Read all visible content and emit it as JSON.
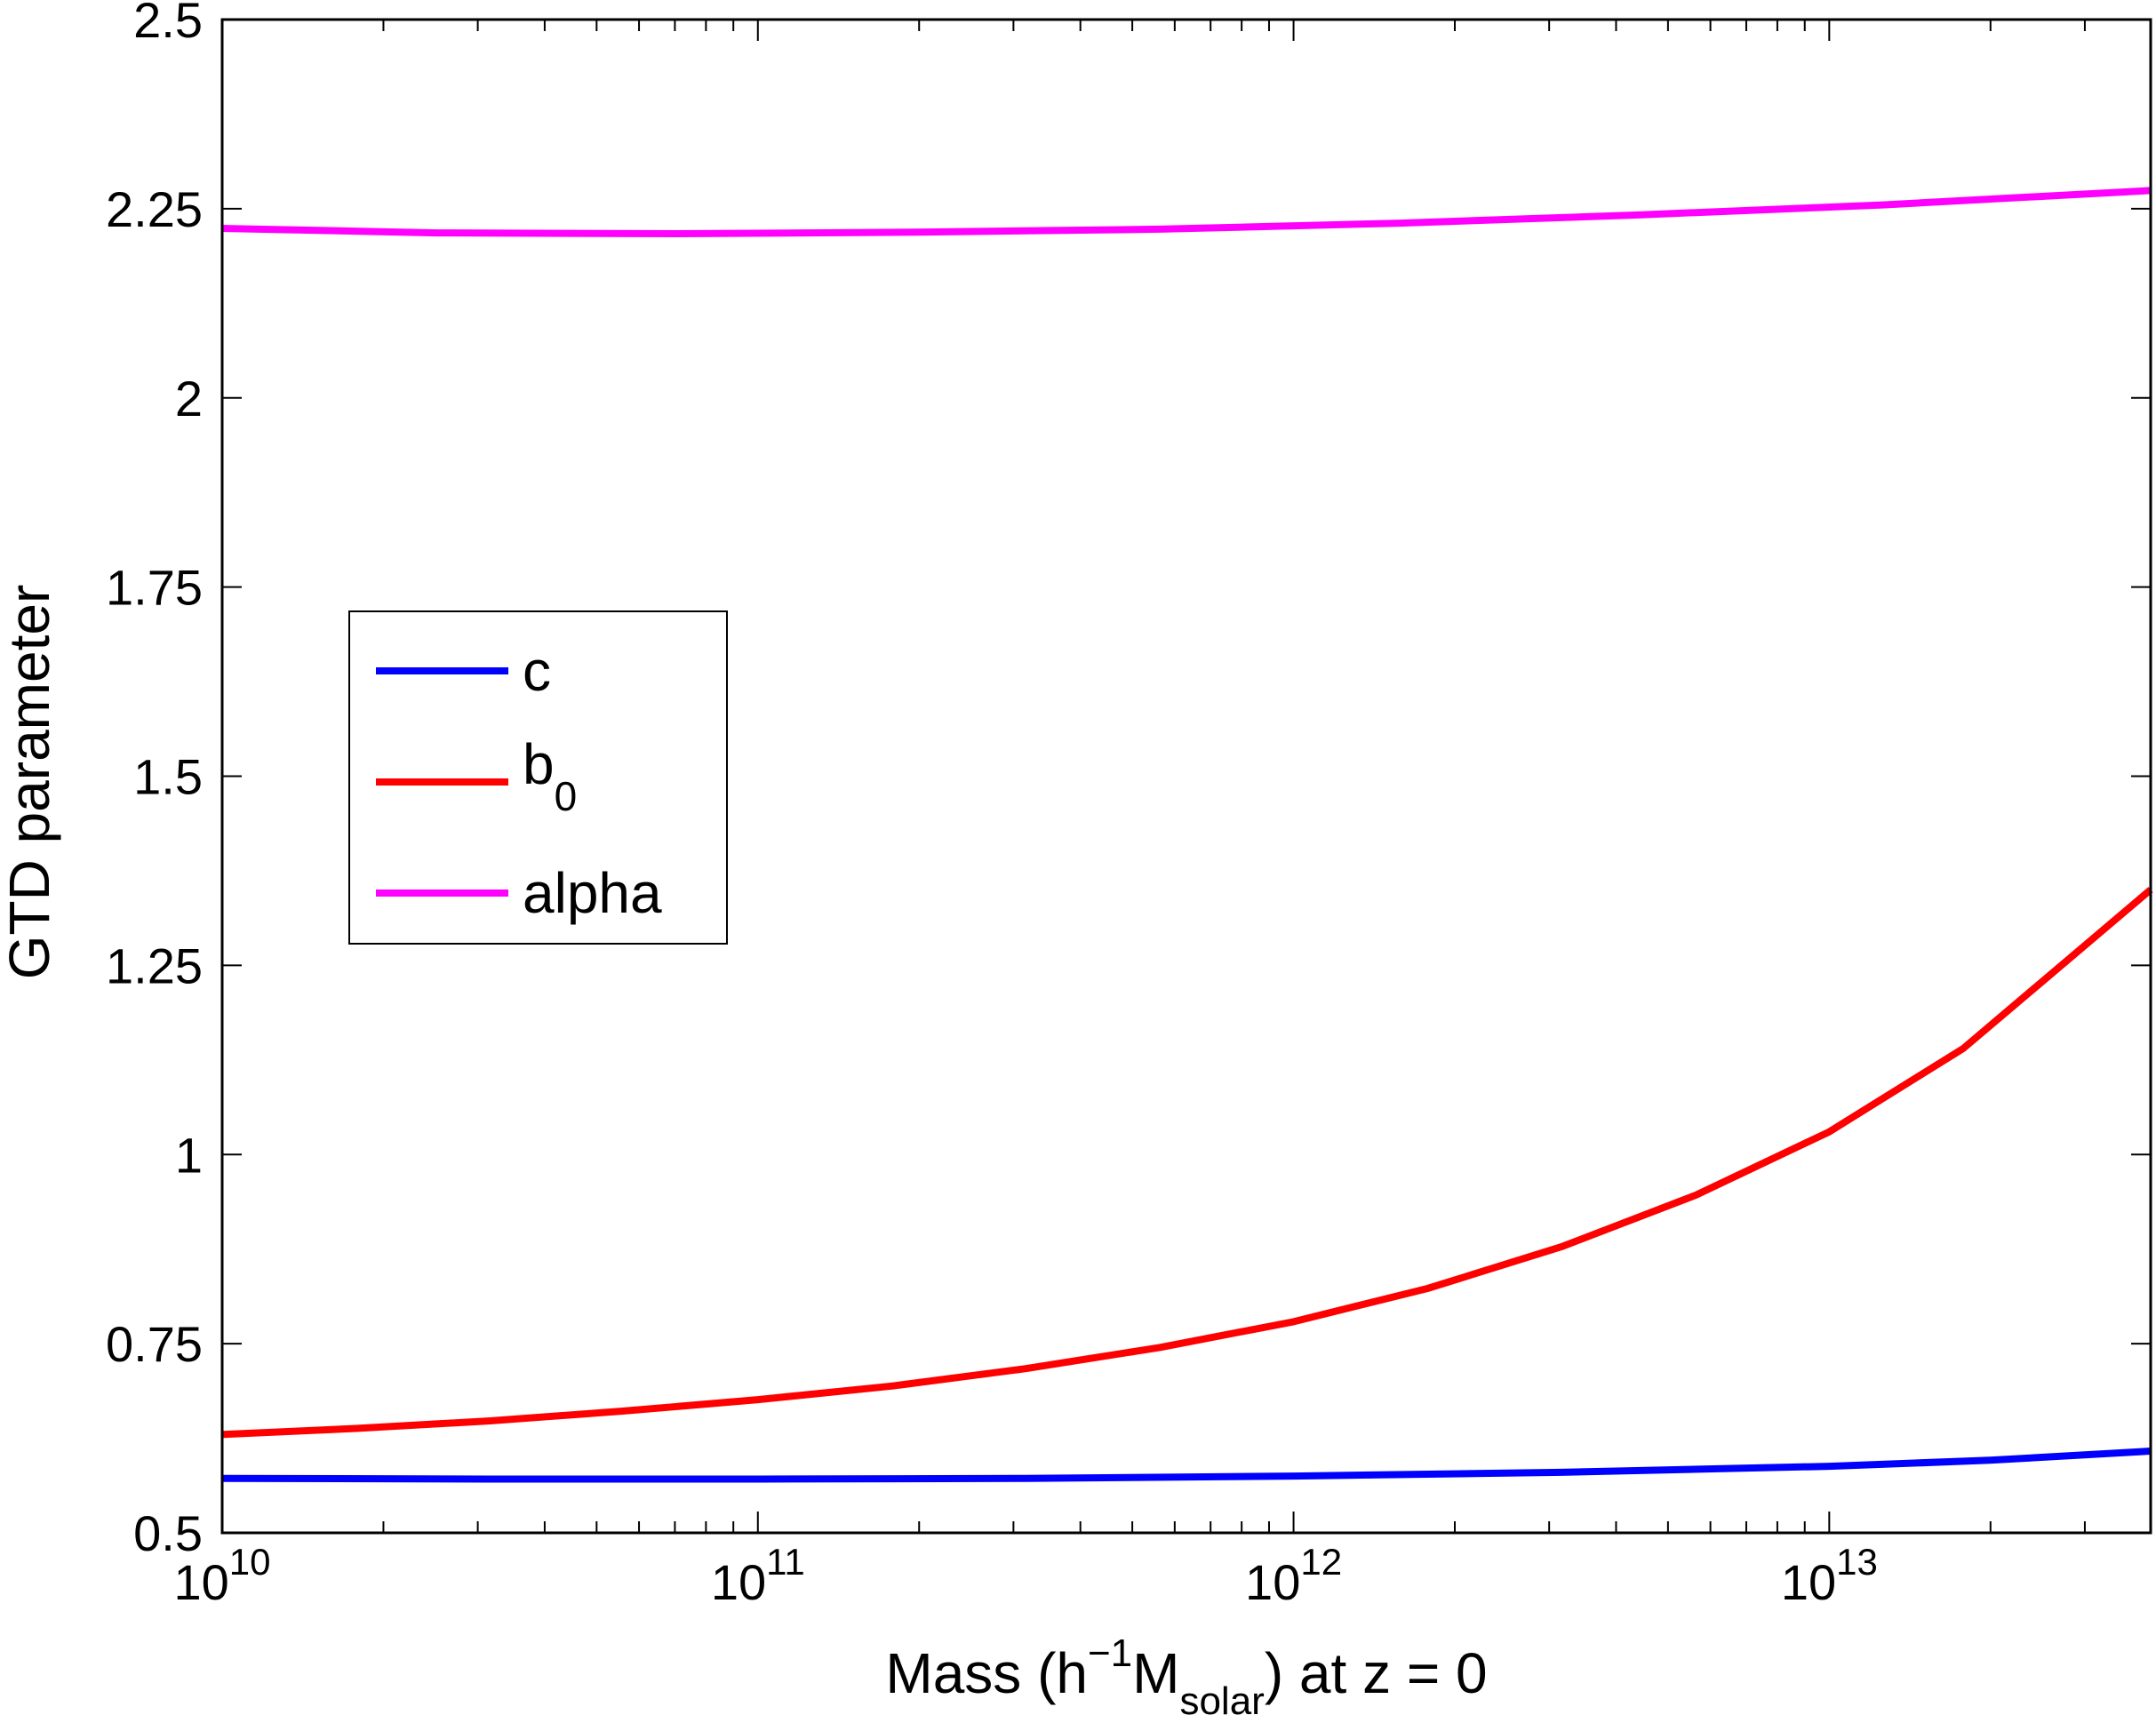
{
  "chart_data": {
    "type": "line",
    "title": "",
    "xlabel": {
      "main": "Mass (h",
      "sup": "−1",
      "mid": "M",
      "sub": "solar",
      "tail": ") at z = 0"
    },
    "ylabel": "GTD parameter",
    "xscale": "log",
    "xlim_log10": [
      10,
      13.6
    ],
    "ylim": [
      0.5,
      2.5
    ],
    "grid": false,
    "legend_position": "left-middle",
    "yticks": [
      {
        "value": 0.5,
        "label": "0.5"
      },
      {
        "value": 0.75,
        "label": "0.75"
      },
      {
        "value": 1.0,
        "label": "1"
      },
      {
        "value": 1.25,
        "label": "1.25"
      },
      {
        "value": 1.5,
        "label": "1.5"
      },
      {
        "value": 1.75,
        "label": "1.75"
      },
      {
        "value": 2.0,
        "label": "2"
      },
      {
        "value": 2.25,
        "label": "2.25"
      },
      {
        "value": 2.5,
        "label": "2.5"
      }
    ],
    "xticks": [
      {
        "exp": 10,
        "base": "10",
        "sup": "10"
      },
      {
        "exp": 11,
        "base": "10",
        "sup": "11"
      },
      {
        "exp": 12,
        "base": "10",
        "sup": "12"
      },
      {
        "exp": 13,
        "base": "10",
        "sup": "13"
      }
    ],
    "series": [
      {
        "name": "c",
        "label_base": "c",
        "label_sub": "",
        "color": "#0000ff",
        "log10_mass": [
          10.0,
          10.5,
          11.0,
          11.5,
          12.0,
          12.5,
          13.0,
          13.3,
          13.6
        ],
        "values": [
          0.572,
          0.571,
          0.571,
          0.572,
          0.575,
          0.58,
          0.588,
          0.596,
          0.608
        ]
      },
      {
        "name": "b0",
        "label_base": "b",
        "label_sub": "0",
        "color": "#ff0000",
        "log10_mass": [
          10.0,
          10.25,
          10.5,
          10.75,
          11.0,
          11.25,
          11.5,
          11.75,
          12.0,
          12.25,
          12.5,
          12.75,
          13.0,
          13.25,
          13.4,
          13.6
        ],
        "values": [
          0.63,
          0.638,
          0.648,
          0.661,
          0.676,
          0.694,
          0.717,
          0.745,
          0.779,
          0.823,
          0.878,
          0.946,
          1.03,
          1.14,
          1.23,
          1.35
        ]
      },
      {
        "name": "alpha",
        "label_base": "alpha",
        "label_sub": "",
        "color": "#ff00ff",
        "log10_mass": [
          10.0,
          10.4,
          10.85,
          11.3,
          11.75,
          12.2,
          12.65,
          13.1,
          13.6
        ],
        "values": [
          2.224,
          2.218,
          2.217,
          2.219,
          2.223,
          2.231,
          2.242,
          2.255,
          2.274
        ]
      }
    ]
  }
}
